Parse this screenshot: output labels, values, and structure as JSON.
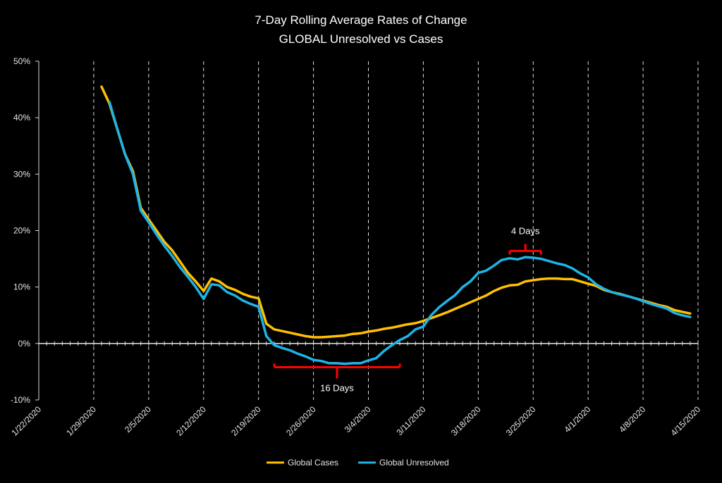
{
  "chart_data": {
    "type": "line",
    "title": "7-Day Rolling Average Rates of Change",
    "subtitle": "GLOBAL Unresolved vs Cases",
    "xlabel": "",
    "ylabel": "",
    "x_start": "1/22/2020",
    "x_end": "4/15/2020",
    "x_ticks": [
      "1/22/2020",
      "1/29/2020",
      "2/5/2020",
      "2/12/2020",
      "2/19/2020",
      "2/26/2020",
      "3/4/2020",
      "3/11/2020",
      "3/18/2020",
      "3/25/2020",
      "4/1/2020",
      "4/8/2020",
      "4/15/2020"
    ],
    "y_ticks": [
      "50%",
      "40%",
      "30%",
      "20%",
      "10%",
      "0%",
      "-10%"
    ],
    "ylim": [
      -10,
      50
    ],
    "grid": "vertical dashed",
    "legend_position": "bottom",
    "colors": {
      "background": "#000000",
      "cases": "#FFC000",
      "unresolved": "#1EB4E6",
      "annotation": "#FF0000"
    },
    "series": [
      {
        "name": "Global Cases",
        "color": "#FFC000",
        "points": [
          [
            "1/30/2020",
            45.5
          ],
          [
            "1/31/2020",
            42.5
          ],
          [
            "2/1/2020",
            38.0
          ],
          [
            "2/2/2020",
            33.5
          ],
          [
            "2/3/2020",
            30.5
          ],
          [
            "2/4/2020",
            24.0
          ],
          [
            "2/5/2020",
            22.0
          ],
          [
            "2/6/2020",
            20.0
          ],
          [
            "2/7/2020",
            18.0
          ],
          [
            "2/8/2020",
            16.5
          ],
          [
            "2/9/2020",
            14.5
          ],
          [
            "2/10/2020",
            12.5
          ],
          [
            "2/11/2020",
            11.0
          ],
          [
            "2/12/2020",
            9.3
          ],
          [
            "2/13/2020",
            11.5
          ],
          [
            "2/14/2020",
            11.0
          ],
          [
            "2/15/2020",
            10.0
          ],
          [
            "2/16/2020",
            9.5
          ],
          [
            "2/17/2020",
            8.8
          ],
          [
            "2/18/2020",
            8.3
          ],
          [
            "2/19/2020",
            8.0
          ],
          [
            "2/20/2020",
            3.5
          ],
          [
            "2/21/2020",
            2.5
          ],
          [
            "2/22/2020",
            2.2
          ],
          [
            "2/23/2020",
            1.9
          ],
          [
            "2/24/2020",
            1.6
          ],
          [
            "2/25/2020",
            1.3
          ],
          [
            "2/26/2020",
            1.1
          ],
          [
            "2/27/2020",
            1.1
          ],
          [
            "2/28/2020",
            1.2
          ],
          [
            "2/29/2020",
            1.3
          ],
          [
            "3/1/2020",
            1.4
          ],
          [
            "3/2/2020",
            1.7
          ],
          [
            "3/3/2020",
            1.8
          ],
          [
            "3/4/2020",
            2.1
          ],
          [
            "3/5/2020",
            2.3
          ],
          [
            "3/6/2020",
            2.6
          ],
          [
            "3/7/2020",
            2.8
          ],
          [
            "3/8/2020",
            3.1
          ],
          [
            "3/9/2020",
            3.4
          ],
          [
            "3/10/2020",
            3.6
          ],
          [
            "3/11/2020",
            4.0
          ],
          [
            "3/12/2020",
            4.5
          ],
          [
            "3/13/2020",
            5.0
          ],
          [
            "3/14/2020",
            5.5
          ],
          [
            "3/15/2020",
            6.1
          ],
          [
            "3/16/2020",
            6.7
          ],
          [
            "3/17/2020",
            7.3
          ],
          [
            "3/18/2020",
            7.9
          ],
          [
            "3/19/2020",
            8.5
          ],
          [
            "3/20/2020",
            9.3
          ],
          [
            "3/21/2020",
            9.9
          ],
          [
            "3/22/2020",
            10.3
          ],
          [
            "3/23/2020",
            10.4
          ],
          [
            "3/24/2020",
            11.0
          ],
          [
            "3/25/2020",
            11.2
          ],
          [
            "3/26/2020",
            11.4
          ],
          [
            "3/27/2020",
            11.5
          ],
          [
            "3/28/2020",
            11.5
          ],
          [
            "3/29/2020",
            11.4
          ],
          [
            "3/30/2020",
            11.4
          ],
          [
            "3/31/2020",
            11.0
          ],
          [
            "4/1/2020",
            10.6
          ],
          [
            "4/2/2020",
            10.2
          ],
          [
            "4/3/2020",
            9.5
          ],
          [
            "4/4/2020",
            9.1
          ],
          [
            "4/5/2020",
            8.8
          ],
          [
            "4/6/2020",
            8.4
          ],
          [
            "4/7/2020",
            8.0
          ],
          [
            "4/8/2020",
            7.6
          ],
          [
            "4/9/2020",
            7.2
          ],
          [
            "4/10/2020",
            6.8
          ],
          [
            "4/11/2020",
            6.5
          ],
          [
            "4/12/2020",
            5.9
          ],
          [
            "4/13/2020",
            5.6
          ],
          [
            "4/14/2020",
            5.3
          ]
        ]
      },
      {
        "name": "Global Unresolved",
        "color": "#1EB4E6",
        "points": [
          [
            "1/31/2020",
            42.8
          ],
          [
            "2/1/2020",
            38.0
          ],
          [
            "2/2/2020",
            33.5
          ],
          [
            "2/3/2020",
            30.0
          ],
          [
            "2/4/2020",
            23.5
          ],
          [
            "2/5/2020",
            21.5
          ],
          [
            "2/6/2020",
            19.3
          ],
          [
            "2/7/2020",
            17.3
          ],
          [
            "2/8/2020",
            15.5
          ],
          [
            "2/9/2020",
            13.5
          ],
          [
            "2/10/2020",
            11.8
          ],
          [
            "2/11/2020",
            10.0
          ],
          [
            "2/12/2020",
            7.9
          ],
          [
            "2/13/2020",
            10.5
          ],
          [
            "2/14/2020",
            10.3
          ],
          [
            "2/15/2020",
            9.1
          ],
          [
            "2/16/2020",
            8.5
          ],
          [
            "2/17/2020",
            7.6
          ],
          [
            "2/18/2020",
            7.0
          ],
          [
            "2/19/2020",
            6.5
          ],
          [
            "2/20/2020",
            1.3
          ],
          [
            "2/21/2020",
            -0.3
          ],
          [
            "2/22/2020",
            -0.8
          ],
          [
            "2/23/2020",
            -1.2
          ],
          [
            "2/24/2020",
            -1.8
          ],
          [
            "2/25/2020",
            -2.3
          ],
          [
            "2/26/2020",
            -2.9
          ],
          [
            "2/27/2020",
            -3.1
          ],
          [
            "2/28/2020",
            -3.5
          ],
          [
            "2/29/2020",
            -3.5
          ],
          [
            "3/1/2020",
            -3.6
          ],
          [
            "3/2/2020",
            -3.5
          ],
          [
            "3/3/2020",
            -3.5
          ],
          [
            "3/4/2020",
            -3.0
          ],
          [
            "3/5/2020",
            -2.6
          ],
          [
            "3/6/2020",
            -1.3
          ],
          [
            "3/7/2020",
            -0.3
          ],
          [
            "3/8/2020",
            0.6
          ],
          [
            "3/9/2020",
            1.3
          ],
          [
            "3/10/2020",
            2.5
          ],
          [
            "3/11/2020",
            3.0
          ],
          [
            "3/12/2020",
            5.0
          ],
          [
            "3/13/2020",
            6.4
          ],
          [
            "3/14/2020",
            7.5
          ],
          [
            "3/15/2020",
            8.5
          ],
          [
            "3/16/2020",
            10.0
          ],
          [
            "3/17/2020",
            11.0
          ],
          [
            "3/18/2020",
            12.5
          ],
          [
            "3/19/2020",
            12.9
          ],
          [
            "3/20/2020",
            13.8
          ],
          [
            "3/21/2020",
            14.8
          ],
          [
            "3/22/2020",
            15.1
          ],
          [
            "3/23/2020",
            14.9
          ],
          [
            "3/24/2020",
            15.3
          ],
          [
            "3/25/2020",
            15.2
          ],
          [
            "3/26/2020",
            15.0
          ],
          [
            "3/27/2020",
            14.6
          ],
          [
            "3/28/2020",
            14.2
          ],
          [
            "3/29/2020",
            13.9
          ],
          [
            "3/30/2020",
            13.3
          ],
          [
            "3/31/2020",
            12.4
          ],
          [
            "4/1/2020",
            11.7
          ],
          [
            "4/2/2020",
            10.5
          ],
          [
            "4/3/2020",
            9.7
          ],
          [
            "4/4/2020",
            9.1
          ],
          [
            "4/5/2020",
            8.7
          ],
          [
            "4/6/2020",
            8.4
          ],
          [
            "4/7/2020",
            8.0
          ],
          [
            "4/8/2020",
            7.5
          ],
          [
            "4/9/2020",
            7.0
          ],
          [
            "4/10/2020",
            6.6
          ],
          [
            "4/11/2020",
            6.2
          ],
          [
            "4/12/2020",
            5.4
          ],
          [
            "4/13/2020",
            5.0
          ],
          [
            "4/14/2020",
            4.7
          ]
        ]
      }
    ],
    "annotations": [
      {
        "text": "16 Days",
        "from": "2/21/2020",
        "to": "3/8/2020",
        "at": -4.2,
        "side": "below"
      },
      {
        "text": "4 Days",
        "from": "3/22/2020",
        "to": "3/26/2020",
        "at": 16.4,
        "side": "above"
      }
    ]
  }
}
